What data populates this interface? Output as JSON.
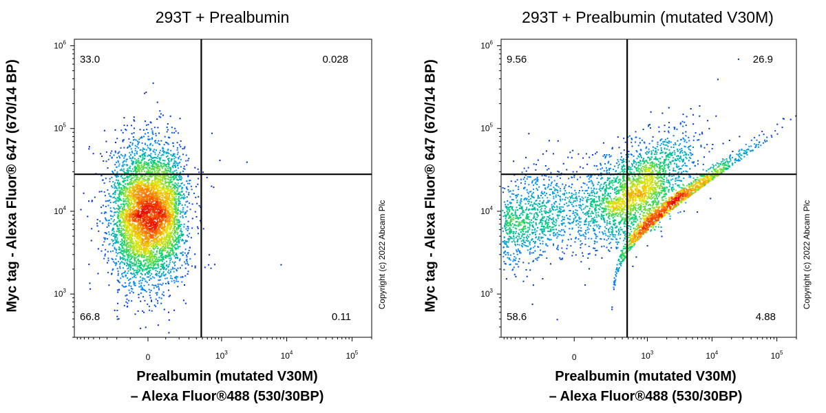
{
  "chart_data": [
    {
      "type": "scatter",
      "title": "293T + Prealbumin",
      "xlabel_line1": "Prealbumin (mutated V30M)",
      "xlabel_line2": "– Alexa Fluor®488 (530/30BP)",
      "ylabel": "Myc tag - Alexa Fluor® 647 (670/14 BP)",
      "x_axis_scale": "biexponential",
      "y_axis_scale": "log",
      "xlim": [
        -1000,
        200000
      ],
      "ylim": [
        300,
        1200000
      ],
      "x_ticks": [
        {
          "value": 0,
          "base": "0",
          "exp": ""
        },
        {
          "value": 1000,
          "base": "10",
          "exp": "3"
        },
        {
          "value": 10000,
          "base": "10",
          "exp": "4"
        },
        {
          "value": 100000,
          "base": "10",
          "exp": "5"
        }
      ],
      "y_ticks": [
        {
          "value": 1000,
          "base": "10",
          "exp": "3"
        },
        {
          "value": 10000,
          "base": "10",
          "exp": "4"
        },
        {
          "value": 100000,
          "base": "10",
          "exp": "5"
        },
        {
          "value": 1000000,
          "base": "10",
          "exp": "6"
        }
      ],
      "gate_x": 480,
      "gate_y": 28000,
      "quadrant_percentages": {
        "upper_left": "33.0",
        "upper_right": "0.028",
        "lower_left": "66.8",
        "lower_right": "0.11"
      },
      "population": {
        "x_center": 0,
        "x_spread": 110,
        "y_log_center": 3.98,
        "y_log_spread": 0.42,
        "count": 5200,
        "correlation": 0
      },
      "outliers": [
        [
          2400,
          40000
        ],
        [
          8000,
          2300
        ],
        [
          300,
          22000
        ],
        [
          380,
          15000
        ]
      ],
      "copyright": "Copyright (c) 2022 Abcam Plc"
    },
    {
      "type": "scatter",
      "title": "293T + Prealbumin (mutated V30M)",
      "xlabel_line1": "Prealbumin (mutated V30M)",
      "xlabel_line2": "– Alexa Fluor®488 (530/30BP)",
      "ylabel": "Myc tag - Alexa Fluor® 647 (670/14 BP)",
      "x_axis_scale": "biexponential",
      "y_axis_scale": "log",
      "xlim": [
        -1000,
        200000
      ],
      "ylim": [
        300,
        1200000
      ],
      "x_ticks": [
        {
          "value": 0,
          "base": "0",
          "exp": ""
        },
        {
          "value": 1000,
          "base": "10",
          "exp": "3"
        },
        {
          "value": 10000,
          "base": "10",
          "exp": "4"
        },
        {
          "value": 100000,
          "base": "10",
          "exp": "5"
        }
      ],
      "y_ticks": [
        {
          "value": 1000,
          "base": "10",
          "exp": "3"
        },
        {
          "value": 10000,
          "base": "10",
          "exp": "4"
        },
        {
          "value": 100000,
          "base": "10",
          "exp": "5"
        },
        {
          "value": 1000000,
          "base": "10",
          "exp": "6"
        }
      ],
      "gate_x": 480,
      "gate_y": 28000,
      "quadrant_percentages": {
        "upper_left": "9.56",
        "upper_right": "26.9",
        "lower_left": "58.6",
        "lower_right": "4.88"
      },
      "population": {
        "x_center": 250,
        "x_spread": 500,
        "y_log_center": 4.1,
        "y_log_spread": 0.38,
        "count": 5200,
        "correlation": 0.72
      },
      "outliers": [
        [
          25000,
          700000
        ],
        [
          -100,
          500
        ],
        [
          12000,
          400000
        ]
      ],
      "copyright": "Copyright (c) 2022 Abcam Plc"
    }
  ]
}
